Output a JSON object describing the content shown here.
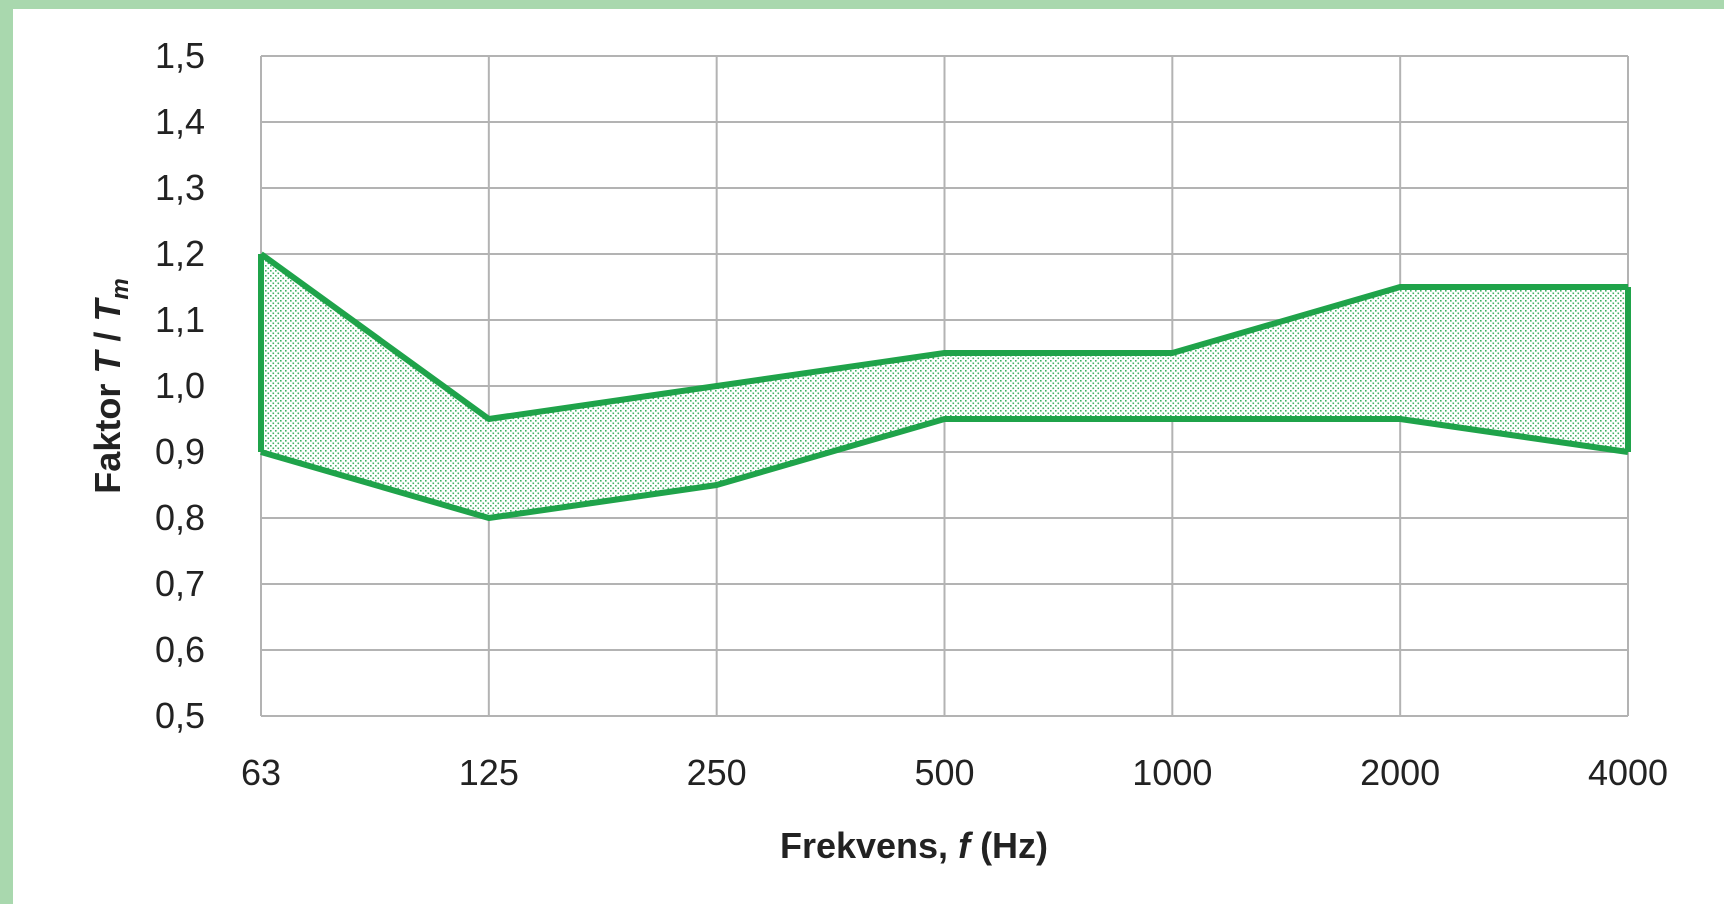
{
  "chart_data": {
    "type": "area",
    "categories": [
      "63",
      "125",
      "250",
      "500",
      "1000",
      "2000",
      "4000"
    ],
    "series": [
      {
        "values": [
          1.2,
          0.95,
          1.0,
          1.05,
          1.05,
          1.15,
          1.15
        ]
      },
      {
        "values": [
          0.9,
          0.8,
          0.85,
          0.95,
          0.95,
          0.95,
          0.9
        ]
      }
    ],
    "ylim": [
      0.5,
      1.5
    ],
    "yticks": [
      "0,5",
      "0,6",
      "0,7",
      "0,8",
      "0,9",
      "1,0",
      "1,1",
      "1,2",
      "1,3",
      "1,4",
      "1,5"
    ],
    "ytick_values": [
      0.5,
      0.6,
      0.7,
      0.8,
      0.9,
      1.0,
      1.1,
      1.2,
      1.3,
      1.4,
      1.5
    ],
    "xlabel": {
      "prefix": "Frekvens, ",
      "var": "f",
      "suffix": " (Hz)"
    },
    "ylabel": {
      "prefix": "Faktor ",
      "var": "T",
      "sep": " / ",
      "var2": "T",
      "sub": "m"
    },
    "grid": true,
    "colors": {
      "band": "#1fa34a",
      "grid": "#b3b3b3",
      "frame": "#a9d8ae"
    }
  }
}
